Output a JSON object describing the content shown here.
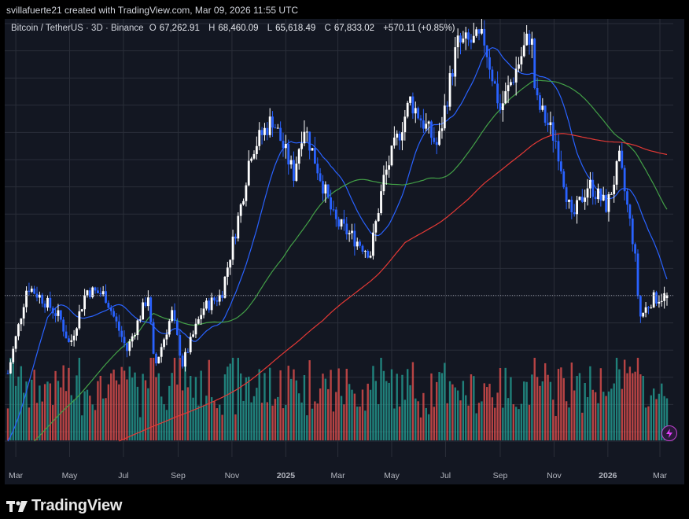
{
  "header": {
    "credit": "svillafuerte21 created with TradingView.com, Mar 09, 2026 11:55 UTC"
  },
  "legend": {
    "symbol": "Bitcoin / TetherUS · 3D · Binance",
    "open_label": "O",
    "open": "67,262.91",
    "high_label": "H",
    "high": "68,460.09",
    "low_label": "L",
    "low": "65,618.49",
    "close_label": "C",
    "close": "67,833.02",
    "change": "+570.11 (+0.85%)"
  },
  "footer": {
    "brand": "TradingView",
    "brand_icon": "tradingview-logo-icon",
    "alert_icon": "lightning-bolt-icon"
  },
  "colors": {
    "background": "#131722",
    "up_candle": "#ffffff",
    "down_candle": "#2962ff",
    "volume_up": "#26a69a",
    "volume_down": "#ef5350",
    "ma_blue": "#2962ff",
    "ma_green": "#43a047",
    "ma_red": "#e53935",
    "grid": "#2a2e39"
  },
  "chart_data": {
    "type": "candlestick",
    "symbol": "Bitcoin / TetherUS",
    "interval": "3D",
    "exchange": "Binance",
    "x_tick_labels": [
      "Mar",
      "May",
      "Jul",
      "Sep",
      "Nov",
      "2025",
      "Mar",
      "May",
      "Jul",
      "Sep",
      "Nov",
      "2026",
      "Mar"
    ],
    "x_range": [
      "2024-02-21",
      "2026-03-09"
    ],
    "y_range": [
      44000,
      114000
    ],
    "grid": true,
    "price_series": [
      {
        "date": "2024-02-21",
        "price": 51000
      },
      {
        "date": "2024-03-05",
        "price": 62000
      },
      {
        "date": "2024-03-14",
        "price": 70000
      },
      {
        "date": "2024-04-01",
        "price": 67000
      },
      {
        "date": "2024-04-20",
        "price": 63000
      },
      {
        "date": "2024-05-01",
        "price": 57000
      },
      {
        "date": "2024-05-20",
        "price": 69000
      },
      {
        "date": "2024-06-10",
        "price": 68000
      },
      {
        "date": "2024-07-05",
        "price": 56000
      },
      {
        "date": "2024-07-29",
        "price": 68000
      },
      {
        "date": "2024-08-05",
        "price": 52000
      },
      {
        "date": "2024-08-25",
        "price": 64000
      },
      {
        "date": "2024-09-06",
        "price": 53000
      },
      {
        "date": "2024-09-29",
        "price": 65000
      },
      {
        "date": "2024-10-20",
        "price": 68000
      },
      {
        "date": "2024-11-12",
        "price": 88000
      },
      {
        "date": "2024-11-22",
        "price": 99000
      },
      {
        "date": "2024-12-17",
        "price": 106000
      },
      {
        "date": "2025-01-10",
        "price": 94000
      },
      {
        "date": "2025-01-21",
        "price": 105000
      },
      {
        "date": "2025-02-25",
        "price": 84000
      },
      {
        "date": "2025-04-07",
        "price": 77000
      },
      {
        "date": "2025-04-22",
        "price": 93000
      },
      {
        "date": "2025-05-22",
        "price": 110000
      },
      {
        "date": "2025-06-22",
        "price": 100000
      },
      {
        "date": "2025-07-14",
        "price": 122000
      },
      {
        "date": "2025-08-14",
        "price": 123000
      },
      {
        "date": "2025-09-01",
        "price": 108000
      },
      {
        "date": "2025-10-06",
        "price": 125000
      },
      {
        "date": "2025-10-11",
        "price": 110000
      },
      {
        "date": "2025-11-04",
        "price": 101000
      },
      {
        "date": "2025-11-21",
        "price": 84000
      },
      {
        "date": "2025-12-10",
        "price": 92000
      },
      {
        "date": "2025-12-31",
        "price": 87000
      },
      {
        "date": "2026-01-14",
        "price": 97000
      },
      {
        "date": "2026-01-31",
        "price": 78000
      },
      {
        "date": "2026-02-06",
        "price": 63000
      },
      {
        "date": "2026-02-20",
        "price": 67000
      },
      {
        "date": "2026-03-09",
        "price": 67833
      }
    ],
    "moving_averages": [
      {
        "color": "#2962ff"
      },
      {
        "color": "#43a047"
      },
      {
        "color": "#e53935"
      }
    ]
  }
}
